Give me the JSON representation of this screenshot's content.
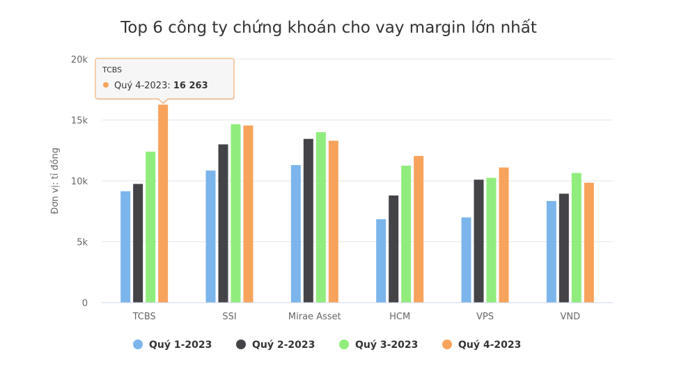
{
  "chart_data": {
    "type": "bar",
    "title": "Top 6 công ty chứng khoán cho vay margin lớn nhất",
    "ylabel": "Đơn vị: tỉ đồng",
    "xlabel": "",
    "ylim": [
      0,
      20000
    ],
    "yticks": [
      0,
      5000,
      10000,
      15000,
      20000
    ],
    "ytick_labels": [
      "0",
      "5k",
      "10k",
      "15k",
      "20k"
    ],
    "grid": true,
    "legend_position": "bottom",
    "categories": [
      "TCBS",
      "SSI",
      "Mirae Asset",
      "HCM",
      "VPS",
      "VND"
    ],
    "series": [
      {
        "name": "Quý 1-2023",
        "color": "#7cb5ec",
        "values": [
          9150,
          10850,
          11300,
          6850,
          7000,
          8350
        ]
      },
      {
        "name": "Quý 2-2023",
        "color": "#434348",
        "values": [
          9750,
          13000,
          13450,
          8800,
          10100,
          8950
        ]
      },
      {
        "name": "Quý 3-2023",
        "color": "#90ed7d",
        "values": [
          12400,
          14650,
          14000,
          11250,
          10250,
          10650
        ]
      },
      {
        "name": "Quý 4-2023",
        "color": "#f7a35c",
        "values": [
          16263,
          14550,
          13300,
          12050,
          11100,
          9850
        ]
      }
    ],
    "tooltip": {
      "category": "TCBS",
      "series_label": "Quý 4-2023",
      "value_text": "16 263"
    }
  }
}
